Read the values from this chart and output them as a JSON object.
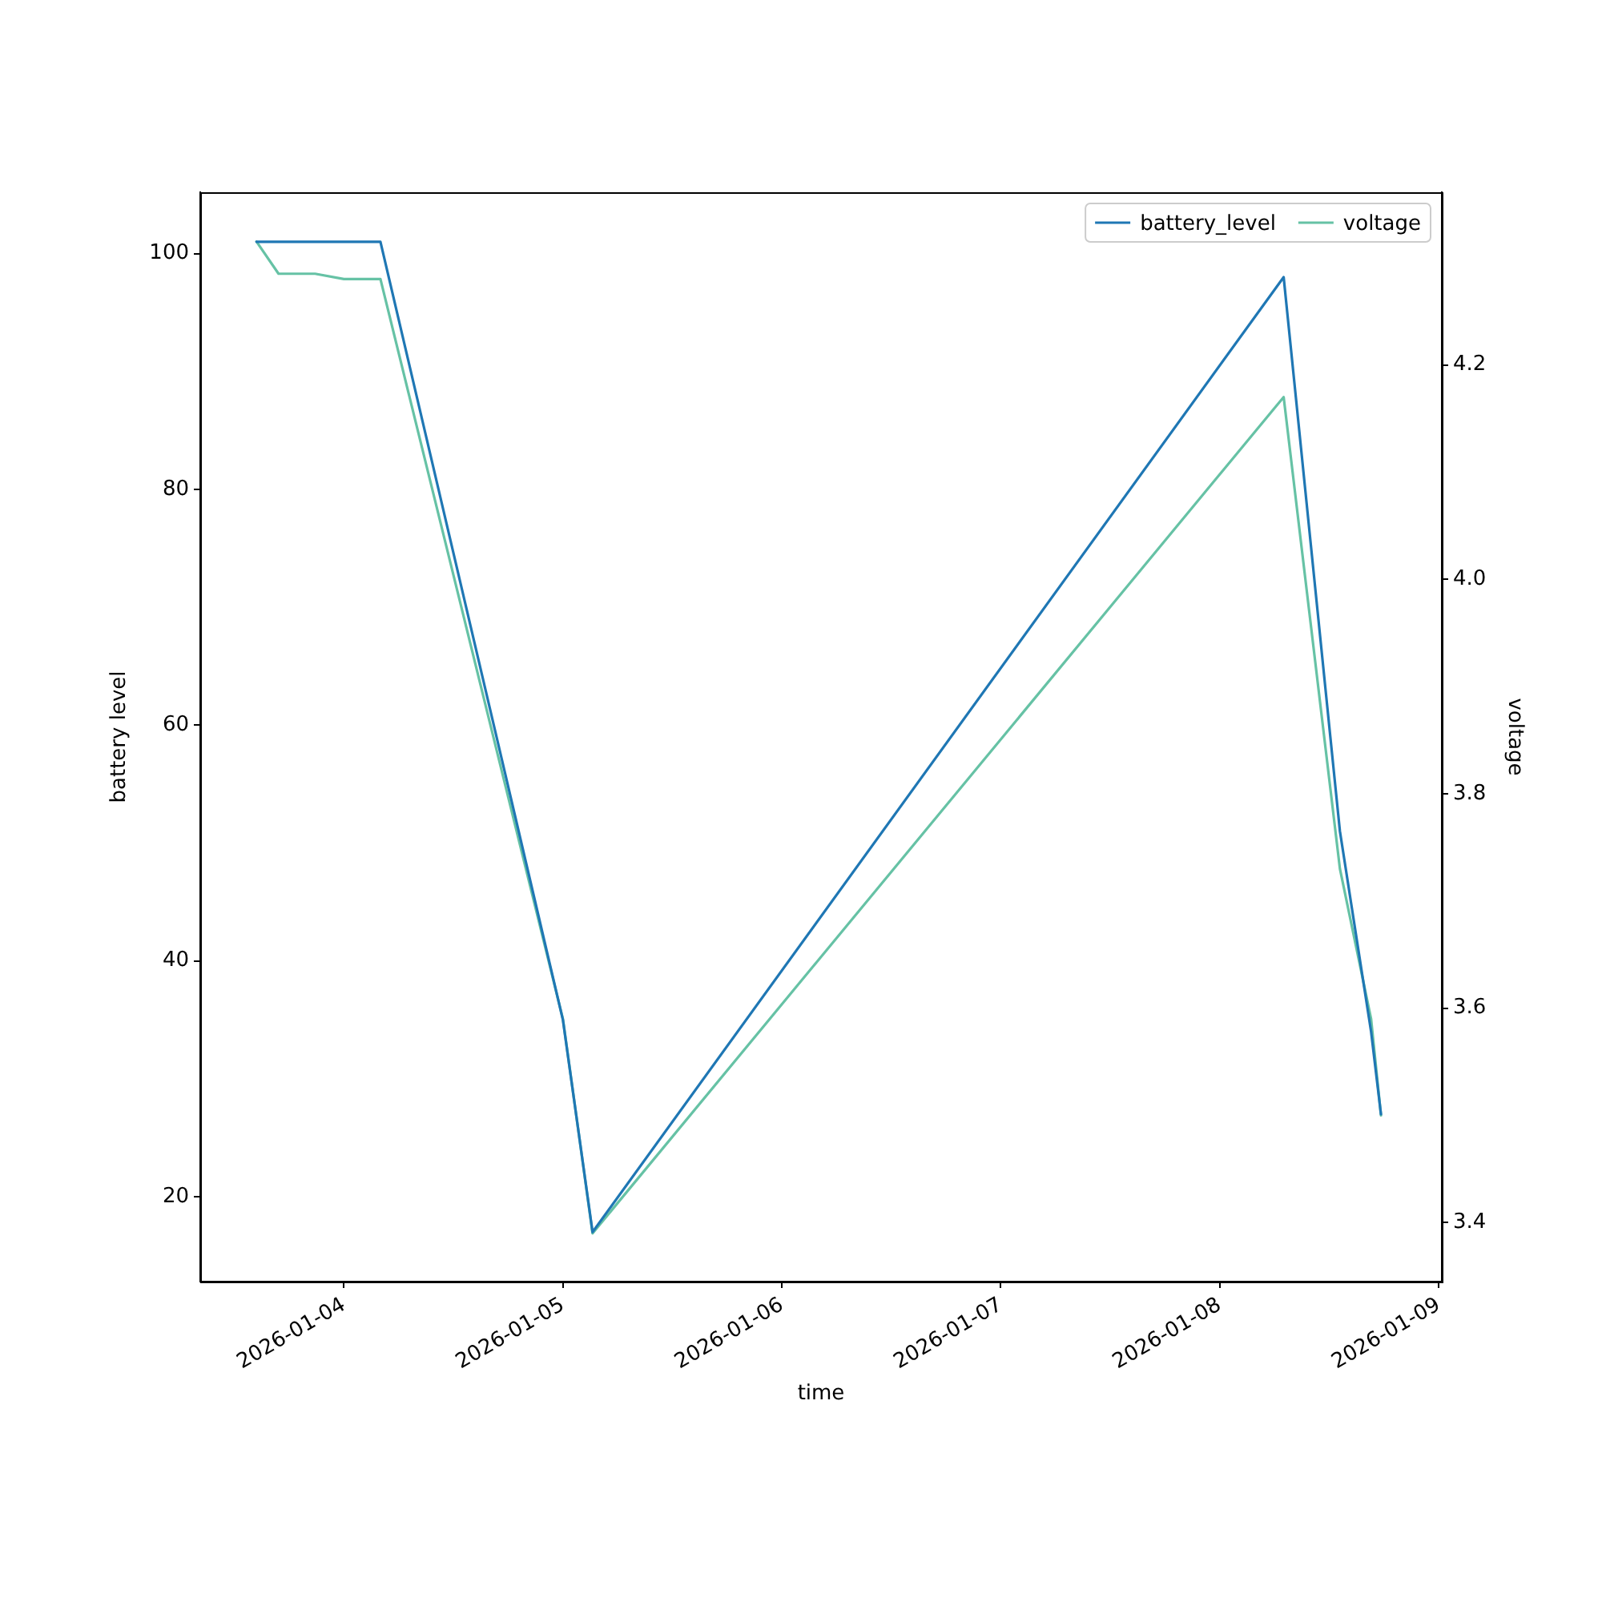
{
  "chart_data": {
    "type": "line",
    "xlabel": "time",
    "ylabel": "battery level",
    "y2label": "voltage",
    "x": [
      "2026-01-03T14:25",
      "2026-01-03T16:50",
      "2026-01-03T20:50",
      "2026-01-04T00:00",
      "2026-01-04T04:00",
      "2026-01-05T00:00",
      "2026-01-05T03:15",
      "2026-01-08T07:00",
      "2026-01-08T13:10",
      "2026-01-08T16:35",
      "2026-01-08T17:40"
    ],
    "series": [
      {
        "name": "battery_level",
        "color": "#1f77b4",
        "values": [
          101,
          101,
          101,
          101,
          101,
          35,
          17,
          98,
          51,
          34,
          27
        ]
      },
      {
        "name": "voltage",
        "color": "#66c2a5",
        "axis": "y2",
        "values": [
          4.315,
          4.285,
          4.285,
          4.28,
          4.28,
          3.59,
          3.39,
          4.17,
          3.73,
          3.59,
          3.5
        ]
      }
    ],
    "xlim": [
      "2026-01-03T08:15",
      "2026-01-09T00:20"
    ],
    "xticks": [
      "2026-01-04",
      "2026-01-05",
      "2026-01-06",
      "2026-01-07",
      "2026-01-08",
      "2026-01-09"
    ],
    "ylim": [
      12.8,
      105.2
    ],
    "yticks": [
      20,
      40,
      60,
      80,
      100
    ],
    "y2lim": [
      3.345,
      4.361
    ],
    "y2ticks": [
      3.4,
      3.6,
      3.8,
      {
        "value": 4,
        "label": "4.0"
      },
      4.2
    ],
    "legend": "top right"
  }
}
